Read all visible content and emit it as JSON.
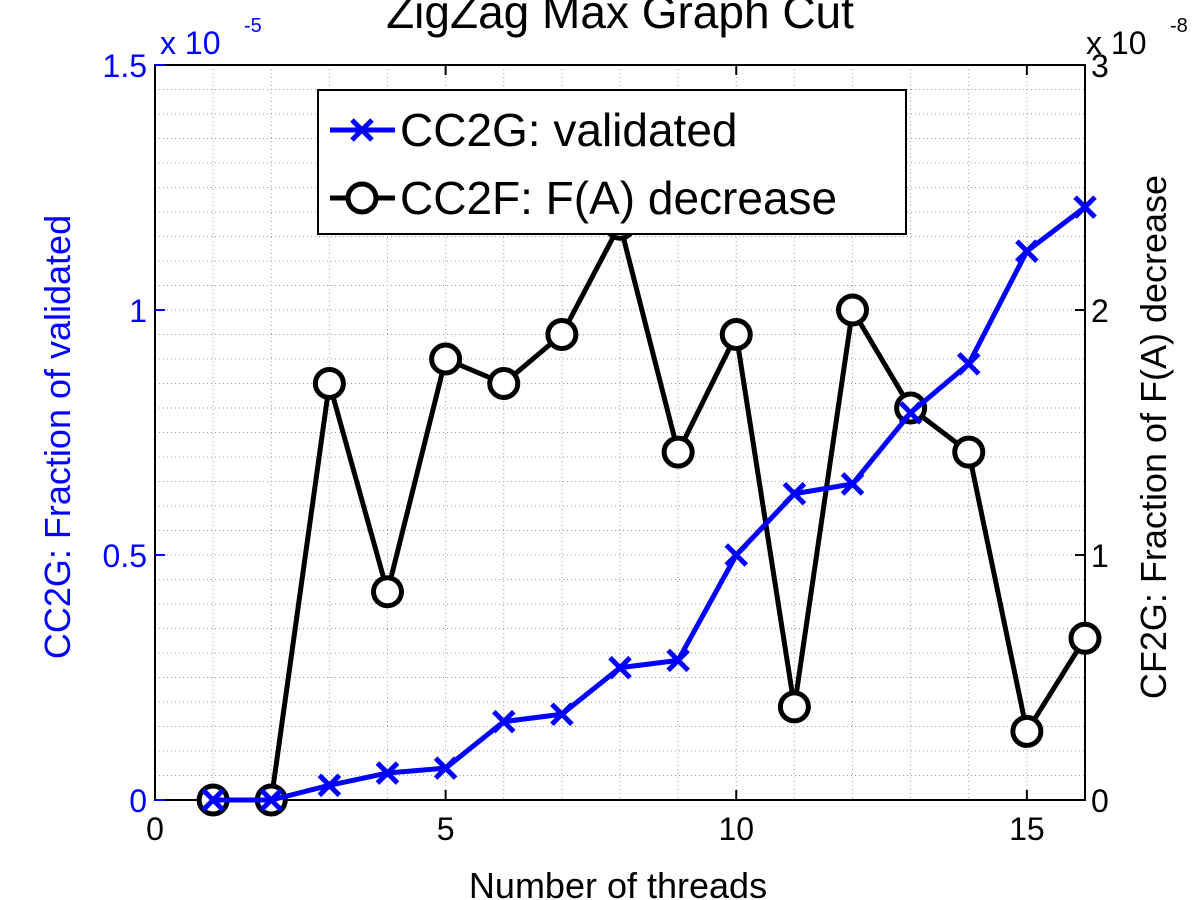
{
  "chart_data": {
    "type": "line",
    "title": "ZigZag Max Graph Cut",
    "xlabel": "Number of threads",
    "ylabel_left": "CC2G: Fraction of validated",
    "ylabel_right": "CF2G: Fraction of F(A) decrease",
    "xlim": [
      0,
      16
    ],
    "ylim_left": [
      0,
      1.5
    ],
    "ylim_right": [
      0,
      3
    ],
    "x_ticks": [
      "0",
      "5",
      "10",
      "15"
    ],
    "y_left_ticks": [
      "0",
      "0.5",
      "1",
      "1.5"
    ],
    "y_right_ticks": [
      "0",
      "1",
      "2",
      "3"
    ],
    "y_left_exponent": {
      "base": "x 10",
      "power": "-5"
    },
    "y_right_exponent": {
      "base": "x 10",
      "power": "-8"
    },
    "grid": true,
    "legend_position": "top-center",
    "series": [
      {
        "name": "CC2G: validated",
        "axis": "left",
        "marker": "x",
        "color": "#0000ff",
        "x": [
          1,
          2,
          3,
          4,
          5,
          6,
          7,
          8,
          9,
          10,
          11,
          12,
          13,
          14,
          15,
          16
        ],
        "values": [
          0,
          0,
          0.03,
          0.055,
          0.065,
          0.16,
          0.175,
          0.27,
          0.285,
          0.5,
          0.625,
          0.645,
          0.79,
          0.89,
          1.12,
          1.21
        ]
      },
      {
        "name": "CC2F: F(A) decrease",
        "axis": "right",
        "marker": "o",
        "color": "#000000",
        "x": [
          1,
          2,
          3,
          4,
          5,
          6,
          7,
          8,
          9,
          10,
          11,
          12,
          13,
          14,
          15,
          16
        ],
        "values": [
          0,
          0,
          1.7,
          0.85,
          1.8,
          1.7,
          1.9,
          2.35,
          1.42,
          1.9,
          0.38,
          2.0,
          1.6,
          1.42,
          0.28,
          0.66
        ]
      }
    ]
  }
}
